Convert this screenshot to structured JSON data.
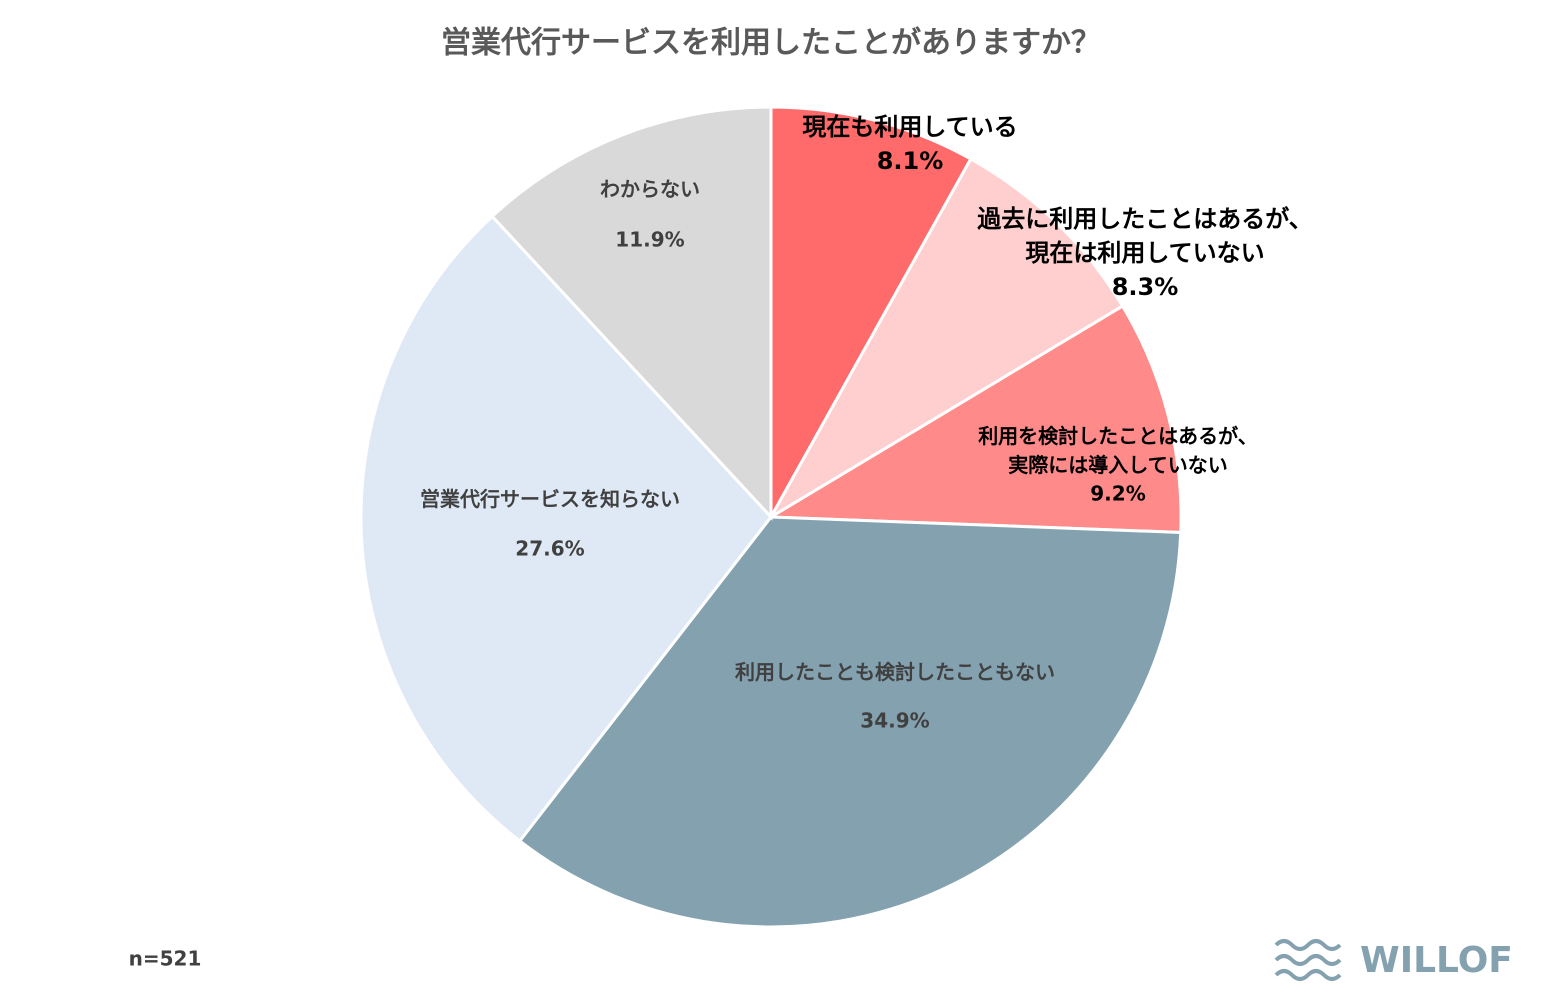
{
  "chart_data": {
    "type": "pie",
    "title": "営業代行サービスを利用したことがありますか？",
    "categories": [
      "現在も利用している",
      "過去に利用したことはあるが、\n現在は利用していない",
      "利用を検討したことはあるが、\n実際には導入していない",
      "利用したことも検討したこともない",
      "営業代行サービスを知らない",
      "わからない"
    ],
    "values": [
      8.1,
      8.3,
      9.2,
      34.9,
      27.6,
      11.9
    ],
    "value_labels": [
      "8.1%",
      "8.3%",
      "9.2%",
      "34.9%",
      "27.6%",
      "11.9%"
    ],
    "colors": [
      "#ff6b6b",
      "#ffcfcf",
      "#ff8a8a",
      "#84a1b0",
      "#dfe9f5",
      "#d9d9d9"
    ],
    "note": "n=521",
    "brand": "WILLOF"
  }
}
